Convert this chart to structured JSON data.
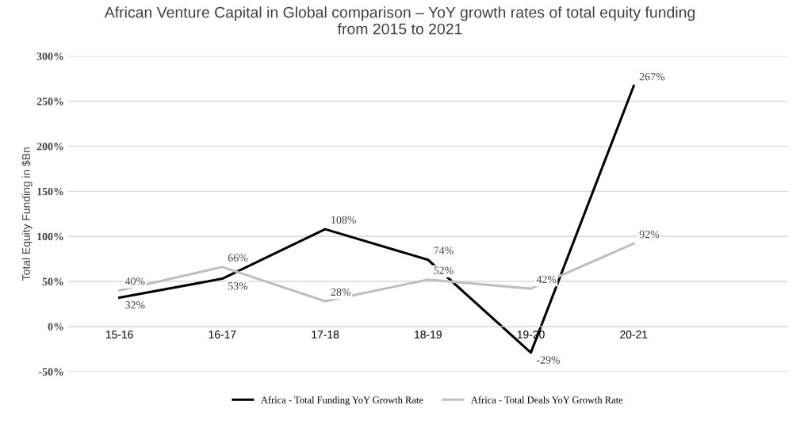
{
  "chart_data": {
    "type": "line",
    "title": "African Venture Capital in Global comparison – YoY growth rates of total equity funding\nfrom 2015 to 2021",
    "ylabel": "Total Equity Funding in $Bn",
    "categories": [
      "15-16",
      "16-17",
      "17-18",
      "18-19",
      "19-20",
      "20-21",
      null
    ],
    "series": [
      {
        "name": "Africa - Total Funding YoY Growth Rate",
        "color": "#000000",
        "values": [
          32,
          53,
          108,
          74,
          -29,
          267,
          null
        ],
        "value_labels": [
          "32%",
          "53%",
          "108%",
          "74%",
          "-29%",
          "267%",
          null
        ]
      },
      {
        "name": "Africa - Total Deals YoY Growth Rate",
        "color": "#bfbfbf",
        "values": [
          40,
          66,
          28,
          52,
          42,
          92,
          null
        ],
        "value_labels": [
          "40%",
          "66%",
          "28%",
          "52%",
          "42%",
          "92%",
          null
        ]
      }
    ],
    "ylim": [
      -50,
      300
    ],
    "yticks": [
      {
        "value": -50,
        "label": "-50%"
      },
      {
        "value": 0,
        "label": "0%"
      },
      {
        "value": 50,
        "label": "50%"
      },
      {
        "value": 100,
        "label": "100%"
      },
      {
        "value": 150,
        "label": "150%"
      },
      {
        "value": 200,
        "label": "200%"
      },
      {
        "value": 250,
        "label": "250%"
      },
      {
        "value": 300,
        "label": "300%"
      }
    ],
    "grid": "y",
    "legend": "bottom",
    "marker": "none",
    "line_style": "solid"
  }
}
